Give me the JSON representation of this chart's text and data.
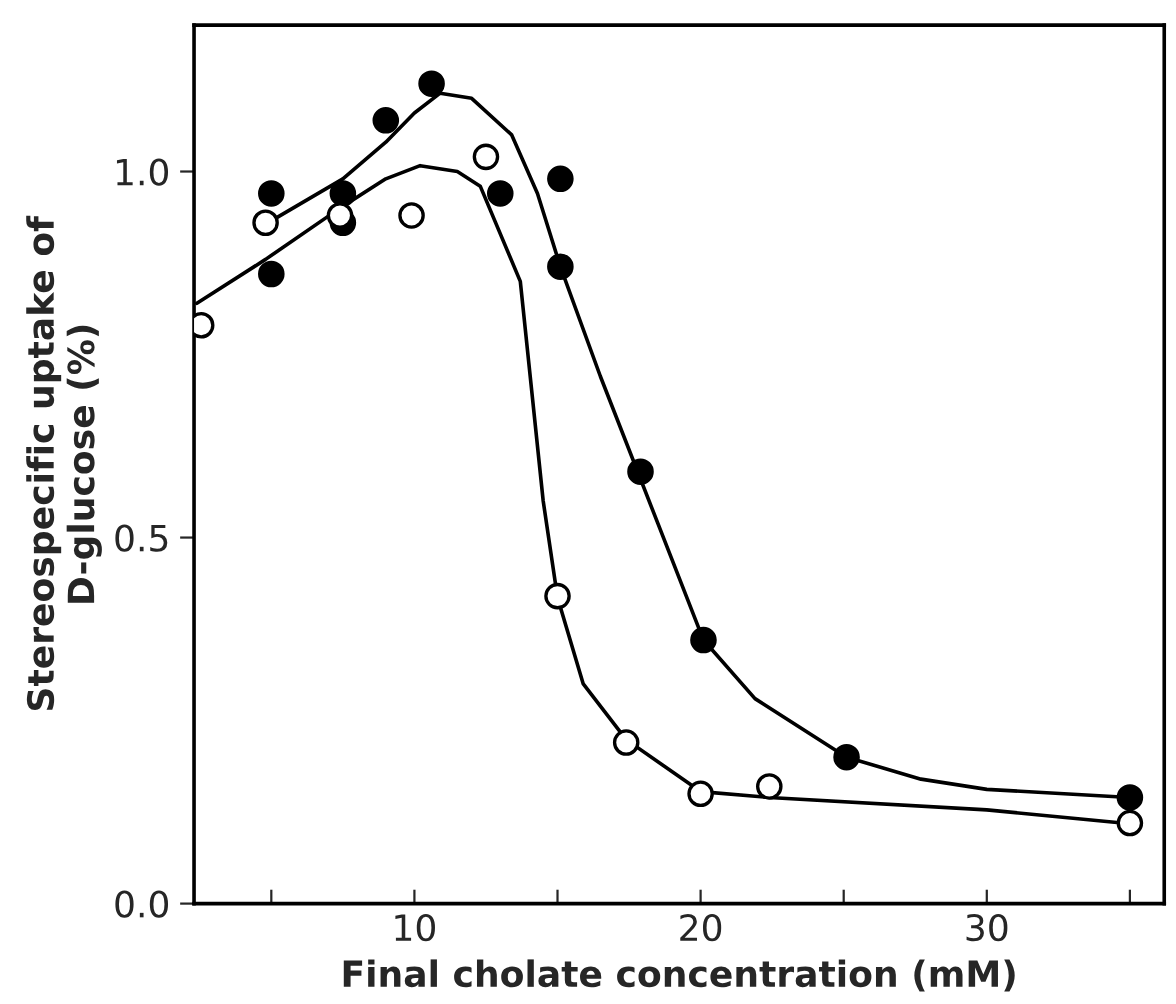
{
  "chart_data": {
    "type": "scatter",
    "xlabel": "Final cholate concentration (mM)",
    "ylabel": "Stereospecific uptake of\nD-glucose (%)",
    "xlim": [
      2.3,
      36.2
    ],
    "ylim": [
      0,
      1.2
    ],
    "xticks": [
      {
        "value": 5,
        "label": null
      },
      10,
      {
        "value": 15,
        "label": null
      },
      20,
      {
        "value": 25,
        "label": null
      },
      30,
      {
        "value": 35,
        "label": null
      }
    ],
    "yticks": [
      {
        "value": 0,
        "label": "0.0"
      },
      {
        "value": 0.5,
        "label": "0.5"
      },
      {
        "value": 1.0,
        "label": "1.0"
      }
    ],
    "grid": false,
    "legend": false,
    "series": [
      {
        "type": "line",
        "marker": "none",
        "color": "#000000",
        "x": [
          5.1,
          7.5,
          9,
          10,
          10.9,
          12,
          13.4,
          14.3,
          15.1,
          16.5,
          18.5,
          20.1,
          21.9,
          25.1,
          27.7,
          30,
          35
        ],
        "values": [
          0.935,
          0.99,
          1.04,
          1.08,
          1.107,
          1.1,
          1.05,
          0.97,
          0.87,
          0.72,
          0.52,
          0.36,
          0.28,
          0.2,
          0.17,
          0.156,
          0.145
        ]
      },
      {
        "type": "line",
        "marker": "none",
        "color": "#000000",
        "x": [
          2.4,
          4.8,
          7.4,
          9,
          10.2,
          11.5,
          12.3,
          13.7,
          14.5,
          15.0,
          15.9,
          17.4,
          20,
          22.4,
          30,
          35
        ],
        "values": [
          0.82,
          0.88,
          0.95,
          0.99,
          1.008,
          1.0,
          0.98,
          0.85,
          0.55,
          0.418,
          0.3,
          0.224,
          0.153,
          0.145,
          0.128,
          0.109
        ]
      },
      {
        "marker": "circle",
        "color": "#000000",
        "x": [
          5,
          5,
          7.5,
          7.5,
          9,
          10.6,
          13,
          15.1,
          15.1,
          17.9,
          20.1,
          25.1,
          35
        ],
        "values": [
          0.97,
          0.86,
          0.97,
          0.93,
          1.07,
          1.12,
          0.97,
          0.99,
          0.87,
          0.59,
          0.36,
          0.2,
          0.145
        ]
      },
      {
        "marker": "circle",
        "color": "#ffffff",
        "x": [
          2.55,
          4.8,
          7.4,
          9.9,
          12.5,
          15,
          17.4,
          20,
          22.4,
          35
        ],
        "values": [
          0.79,
          0.93,
          0.94,
          0.94,
          1.02,
          0.42,
          0.22,
          0.15,
          0.16,
          0.11
        ]
      }
    ]
  }
}
